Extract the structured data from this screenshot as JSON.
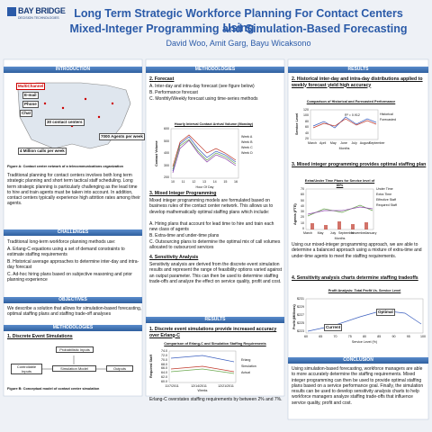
{
  "header": {
    "logo": "BAY BRIDGE",
    "logo_sub": "DECISION TECHNOLOGIES",
    "title_line1": "Long Term Strategic Workforce Planning For Contact Centers Using",
    "title_line2": "Mixed-Integer Programming and Simulation-Based Forecasting",
    "authors": "David Woo, Amit Garg, Bayu Wicaksono"
  },
  "intro": {
    "heading": "INTRODUCTION",
    "map_labels": [
      "MultiChannel",
      "E-mail",
      "Phone",
      "Chat",
      "30 contact centers",
      "7000 Agents per week",
      "4 Million calls per week"
    ],
    "caption": "Figure A: Contact center network of a telecommunications organization",
    "text": "Traditional planning for contact centers involves both long term strategic planning and short term tactical staff scheduling. Long term strategic planning is particularly challenging as the lead time to hire and train agents must be taken into account. In addition, contact centers typically experience high attrition rates among their agents."
  },
  "challenges": {
    "heading": "CHALLENGES",
    "lead": "Traditional long-term workforce planning methods use:",
    "items": [
      "A. Erlang-C equations using a set of demand constraints to estimate staffing requirements",
      "B. Historical average approaches to determine inter-day and intra-day forecast",
      "C. Ad-hoc hiring plans based on subjective reasoning and prior planning experience"
    ]
  },
  "objectives": {
    "heading": "OBJECTIVES",
    "text": "We describe a solution that allows for simulation-based forecasting, optimal staffing plans and staffing trade-off analyses"
  },
  "methods1": {
    "heading": "METHODOLOGIES",
    "sub": "1. Discrete Event Simulations",
    "nodes": [
      "Probabilistic Inputs",
      "Controllable Inputs",
      "Simulation Model",
      "Outputs"
    ],
    "caption": "Figure B: Conceptual model of contact center simulation"
  },
  "methods2": {
    "heading": "METHODOLOGIES",
    "forecast": "2. Forecast",
    "forecast_items": [
      "A. Inter-day and intra-day forecast (see figure below)",
      "B. Performance forecast",
      "C. Monthly/Weekly forecast using time-series methods"
    ],
    "chart": {
      "title": "Hourly Interval Contact Arrival Volume (Monday)",
      "ylabel": "Contact Volume",
      "xlabel": "Hour Of Day",
      "yticks": [
        600,
        500,
        400,
        300,
        200
      ],
      "xticks": [
        10,
        11,
        12,
        13,
        14,
        15,
        16
      ],
      "legend": [
        "Week A",
        "Week B",
        "Week C",
        "Week D"
      ]
    },
    "mip": "3. Mixed Integer Programming",
    "mip_text": "Mixed integer programming models are formulated based on business rules of the contact center network. This allows us to develop mathematically optimal staffing plans which include:",
    "mip_items": [
      "A. Hiring plans that account for lead time to hire and train each new class of agents",
      "B. Extra-time and under-time plans",
      "C. Outsourcing plans to determine the optimal mix of call volumes allocated to outsourced services"
    ],
    "sens": "4. Sensitivity Analysis",
    "sens_text": "Sensitivity analysis are derived from the discrete event simulation results and represent the range of feasibility options varied against an output parameter. This can then be used to determine staffing trade-offs and analyze the effect on service quality, profit and cost."
  },
  "results1": {
    "heading": "RESULTS",
    "sub": "1.  Discrete event simulations provide increased accuracy over Erlang-C",
    "chart": {
      "title": "Comparison of Erlang-C and Simulation Staffing Requirements",
      "ylabel": "Required Staff",
      "xlabel": "Weeks",
      "yticks": [
        "74.0",
        "72.0",
        "70.0",
        "68.0",
        "66.0",
        "64.0",
        "62.0",
        "60.0"
      ],
      "xticks": [
        "11/7/2011",
        "12/14/2011",
        "12/21/2011"
      ],
      "legend": [
        "Erlang",
        "Simulation",
        "Actual"
      ]
    },
    "note": "Erlang-C overstates staffing requirements by between 2% and 7%."
  },
  "results2": {
    "heading": "RESULTS",
    "sub2": "2. Historical inter-day and intra-day distributions applied to weekly forecast yield high accuracy",
    "chart2": {
      "title": "Comparison of Historical and Forecasted Performance",
      "ylabel": "Service Level",
      "xlabel": "Months",
      "r2": "R² = 0.912",
      "yticks": [
        120,
        100,
        80,
        60,
        40,
        20
      ],
      "xticks": [
        "March",
        "April",
        "May",
        "June",
        "July",
        "August",
        "September"
      ],
      "legend": [
        "Historical",
        "Forecasted"
      ]
    },
    "sub3": "3. Mixed integer programming provides optimal staffing plan",
    "chart3": {
      "title": "Extra/Under Time Plans for Service level of 80%",
      "ylabel": "Agents (FTE)",
      "xlabel": "Months",
      "yticks": [
        70,
        60,
        50,
        40,
        30,
        20,
        10,
        0
      ],
      "xticks": [
        "March",
        "May",
        "July",
        "September",
        "November",
        "January"
      ],
      "legend": [
        "Under Time",
        "Extra Time",
        "Effective Staff",
        "Required Staff"
      ]
    },
    "text3": "Using our mixed-integer programming approach, we are able to determine a balanced approach using a mixture of extra-time and under-time agents to meet the staffing requirements.",
    "sub4": "4. Sensitivity analysis charts determine staffing tradeoffs",
    "chart4": {
      "title": "Profit Analysis: Total Profit Vs. Service Level",
      "ylabel": "Profit (Millions)",
      "xlabel": "Service Level (%)",
      "yticks": [
        "$231",
        "$229",
        "$227",
        "$225",
        "$223"
      ],
      "xticks": [
        60,
        65,
        70,
        75,
        80,
        85,
        90,
        95,
        100
      ],
      "optimal": "Optimal",
      "current": "Current"
    }
  },
  "conclusion": {
    "heading": "CONCLUSION",
    "text": "Using simulation-based forecasting, workforce managers are able to more accurately determine the staffing requirements. Mixed integer programming can then be used to provide optimal staffing plans based on a service performance goal. Finally, the simulation results can be used to develop sensitivity analysis charts to help workforce managers analyze staffing trade-offs that influence service quality, profit and cost."
  }
}
